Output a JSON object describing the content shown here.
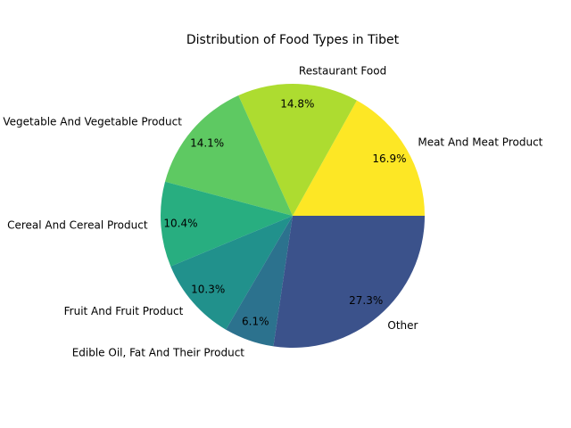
{
  "chart_data": {
    "type": "pie",
    "title": "Distribution of Food Types in Tibet",
    "categories": [
      "Meat And Meat Product",
      "Restaurant Food",
      "Vegetable And Vegetable Product",
      "Cereal And Cereal Product",
      "Fruit And Fruit Product",
      "Edible Oil, Fat And Their Product",
      "Other"
    ],
    "values": [
      16.9,
      14.8,
      14.1,
      10.4,
      10.3,
      6.1,
      27.3
    ],
    "value_labels": [
      "16.9%",
      "14.8%",
      "14.1%",
      "10.4%",
      "10.3%",
      "6.1%",
      "27.3%"
    ],
    "colors": [
      "#fde725",
      "#addc30",
      "#5ec962",
      "#28ae80",
      "#21918c",
      "#2c728e",
      "#3b528b"
    ],
    "start_angle_deg": 0,
    "direction": "counterclockwise",
    "legend": "none"
  }
}
